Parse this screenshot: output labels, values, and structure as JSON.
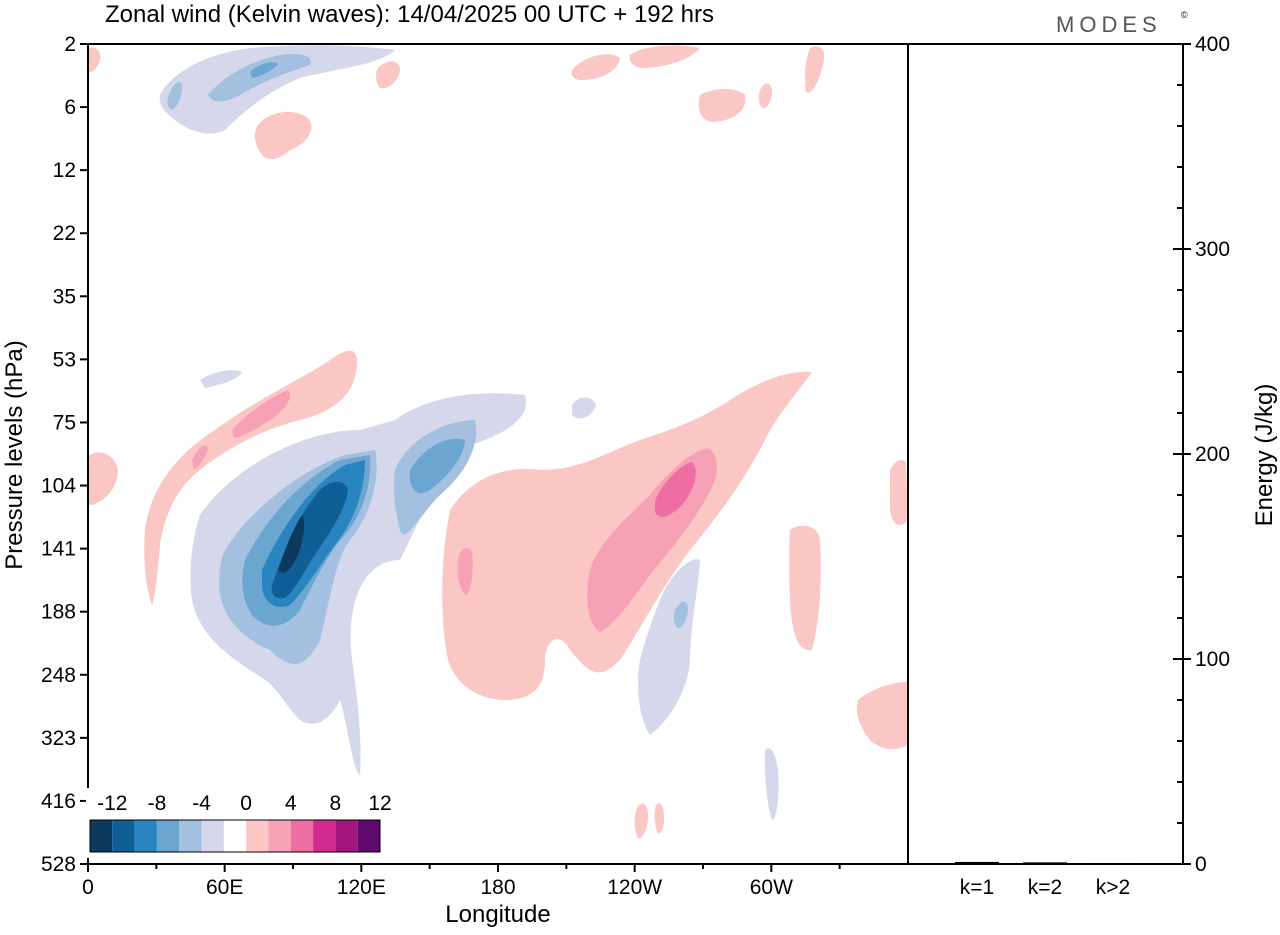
{
  "header": {
    "title": "Zonal wind (Kelvin waves):  14/04/2025  00 UTC  + 192 hrs",
    "brand": "MODES",
    "brand_mark": "©"
  },
  "chart_data": [
    {
      "type": "heatmap",
      "title": "Zonal wind (Kelvin waves):  14/04/2025  00 UTC  + 192 hrs",
      "xlabel": "Longitude",
      "ylabel": "Pressure levels (hPa)",
      "x_ticks": [
        "0",
        "60E",
        "120E",
        "180",
        "120W",
        "60W"
      ],
      "y_ticks": [
        "2",
        "6",
        "12",
        "22",
        "35",
        "53",
        "75",
        "104",
        "141",
        "188",
        "248",
        "323",
        "416",
        "528"
      ],
      "colorbar": {
        "labels": [
          "-12",
          "-8",
          "-4",
          "0",
          "4",
          "8",
          "12"
        ],
        "colors": [
          "#0d3a5c",
          "#0f5f96",
          "#2a84bf",
          "#6aa6d0",
          "#a4c0e0",
          "#d4d8ea",
          "#ffffff",
          "#fac7c4",
          "#f7a1b6",
          "#ee6ea4",
          "#d32a8f",
          "#a3177d",
          "#5e0a6e"
        ]
      },
      "features": [
        {
          "sign": "negative",
          "level": 3,
          "lon_range": [
            55,
            125
          ],
          "p_range": [
            90,
            250
          ]
        },
        {
          "sign": "positive",
          "level": 2,
          "lon_range": [
            225,
            290
          ],
          "p_range": [
            85,
            190
          ]
        },
        {
          "sign": "positive",
          "level": 1,
          "lon_range": [
            50,
            115
          ],
          "p_range": [
            50,
            100
          ]
        },
        {
          "sign": "negative",
          "level": 1,
          "lon_range": [
            30,
            90
          ],
          "p_range": [
            2,
            8
          ]
        }
      ]
    },
    {
      "type": "bar",
      "categories": [
        "k=1",
        "k=2",
        "k>2"
      ],
      "values": [
        1.0,
        0.8,
        0.5
      ],
      "ylabel": "Energy (J/kg)",
      "ylim": [
        0,
        400
      ],
      "y_ticks": [
        "0",
        "100",
        "200",
        "300",
        "400"
      ]
    }
  ],
  "colors": {
    "neg_light": "#d4d8ea",
    "neg_1": "#a4c0e0",
    "neg_2": "#6aa6d0",
    "neg_3": "#2a84bf",
    "neg_4": "#0f5f96",
    "neg_5": "#0d3a5c",
    "pos_light": "#fac7c4",
    "pos_1": "#f7a1b6",
    "pos_2": "#ee6ea4",
    "axis": "#000000"
  }
}
